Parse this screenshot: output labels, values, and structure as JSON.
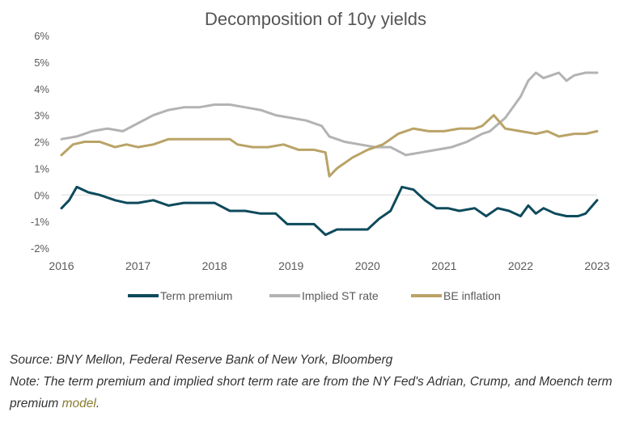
{
  "chart_data": {
    "type": "line",
    "title": "Decomposition of 10y yields",
    "xlabel": "",
    "ylabel": "",
    "xlim": [
      2016.0,
      2023.0
    ],
    "ylim": [
      -2,
      6
    ],
    "x_ticks": [
      2016,
      2017,
      2018,
      2019,
      2020,
      2021,
      2022,
      2023
    ],
    "x_tick_labels": [
      "2016",
      "2017",
      "2018",
      "2019",
      "2020",
      "2021",
      "2022",
      "2023"
    ],
    "y_ticks": [
      -2,
      -1,
      0,
      1,
      2,
      3,
      4,
      5,
      6
    ],
    "y_tick_labels": [
      "-2%",
      "-1%",
      "0%",
      "1%",
      "2%",
      "3%",
      "4%",
      "5%",
      "6%"
    ],
    "grid": false,
    "legend_position": "bottom",
    "series": [
      {
        "name": "Term premium",
        "color": "#0d4a5c",
        "x": [
          2016.0,
          2016.1,
          2016.2,
          2016.35,
          2016.5,
          2016.7,
          2016.85,
          2017.0,
          2017.2,
          2017.4,
          2017.6,
          2017.8,
          2018.0,
          2018.2,
          2018.4,
          2018.6,
          2018.8,
          2018.95,
          2019.1,
          2019.3,
          2019.45,
          2019.6,
          2019.8,
          2020.0,
          2020.15,
          2020.3,
          2020.45,
          2020.6,
          2020.75,
          2020.9,
          2021.05,
          2021.2,
          2021.4,
          2021.55,
          2021.7,
          2021.85,
          2022.0,
          2022.1,
          2022.2,
          2022.3,
          2022.45,
          2022.6,
          2022.75,
          2022.85,
          2023.0
        ],
        "values": [
          -0.5,
          -0.2,
          0.3,
          0.1,
          0.0,
          -0.2,
          -0.3,
          -0.3,
          -0.2,
          -0.4,
          -0.3,
          -0.3,
          -0.3,
          -0.6,
          -0.6,
          -0.7,
          -0.7,
          -1.1,
          -1.1,
          -1.1,
          -1.5,
          -1.3,
          -1.3,
          -1.3,
          -0.9,
          -0.6,
          0.3,
          0.2,
          -0.2,
          -0.5,
          -0.5,
          -0.6,
          -0.5,
          -0.8,
          -0.5,
          -0.6,
          -0.8,
          -0.4,
          -0.7,
          -0.5,
          -0.7,
          -0.8,
          -0.8,
          -0.7,
          -0.2
        ]
      },
      {
        "name": "Implied ST rate",
        "color": "#b3b3b3",
        "x": [
          2016.0,
          2016.2,
          2016.4,
          2016.6,
          2016.8,
          2017.0,
          2017.2,
          2017.4,
          2017.6,
          2017.8,
          2018.0,
          2018.2,
          2018.4,
          2018.6,
          2018.8,
          2019.0,
          2019.2,
          2019.4,
          2019.5,
          2019.7,
          2019.9,
          2020.1,
          2020.3,
          2020.5,
          2020.7,
          2020.9,
          2021.1,
          2021.3,
          2021.5,
          2021.6,
          2021.8,
          2022.0,
          2022.1,
          2022.2,
          2022.3,
          2022.4,
          2022.5,
          2022.6,
          2022.7,
          2022.85,
          2023.0
        ],
        "values": [
          2.1,
          2.2,
          2.4,
          2.5,
          2.4,
          2.7,
          3.0,
          3.2,
          3.3,
          3.3,
          3.4,
          3.4,
          3.3,
          3.2,
          3.0,
          2.9,
          2.8,
          2.6,
          2.2,
          2.0,
          1.9,
          1.8,
          1.8,
          1.5,
          1.6,
          1.7,
          1.8,
          2.0,
          2.3,
          2.4,
          2.9,
          3.7,
          4.3,
          4.6,
          4.4,
          4.5,
          4.6,
          4.3,
          4.5,
          4.6,
          4.6
        ]
      },
      {
        "name": "BE inflation",
        "color": "#b9a366",
        "x": [
          2016.0,
          2016.15,
          2016.3,
          2016.5,
          2016.7,
          2016.85,
          2017.0,
          2017.2,
          2017.4,
          2017.6,
          2017.8,
          2018.0,
          2018.2,
          2018.3,
          2018.5,
          2018.7,
          2018.9,
          2019.1,
          2019.3,
          2019.45,
          2019.5,
          2019.6,
          2019.8,
          2020.0,
          2020.2,
          2020.4,
          2020.6,
          2020.8,
          2021.0,
          2021.2,
          2021.4,
          2021.5,
          2021.65,
          2021.8,
          2022.0,
          2022.2,
          2022.35,
          2022.5,
          2022.7,
          2022.85,
          2023.0
        ],
        "values": [
          1.5,
          1.9,
          2.0,
          2.0,
          1.8,
          1.9,
          1.8,
          1.9,
          2.1,
          2.1,
          2.1,
          2.1,
          2.1,
          1.9,
          1.8,
          1.8,
          1.9,
          1.7,
          1.7,
          1.6,
          0.7,
          1.0,
          1.4,
          1.7,
          1.9,
          2.3,
          2.5,
          2.4,
          2.4,
          2.5,
          2.5,
          2.6,
          3.0,
          2.5,
          2.4,
          2.3,
          2.4,
          2.2,
          2.3,
          2.3,
          2.4
        ]
      }
    ]
  },
  "footnote": {
    "source": "Source: BNY Mellon, Federal Reserve Bank of New York, Bloomberg",
    "note_prefix": "Note: The term premium and implied short term rate are from the NY Fed's Adrian, Crump, and Moench term premium ",
    "note_link": "model",
    "note_suffix": "."
  }
}
